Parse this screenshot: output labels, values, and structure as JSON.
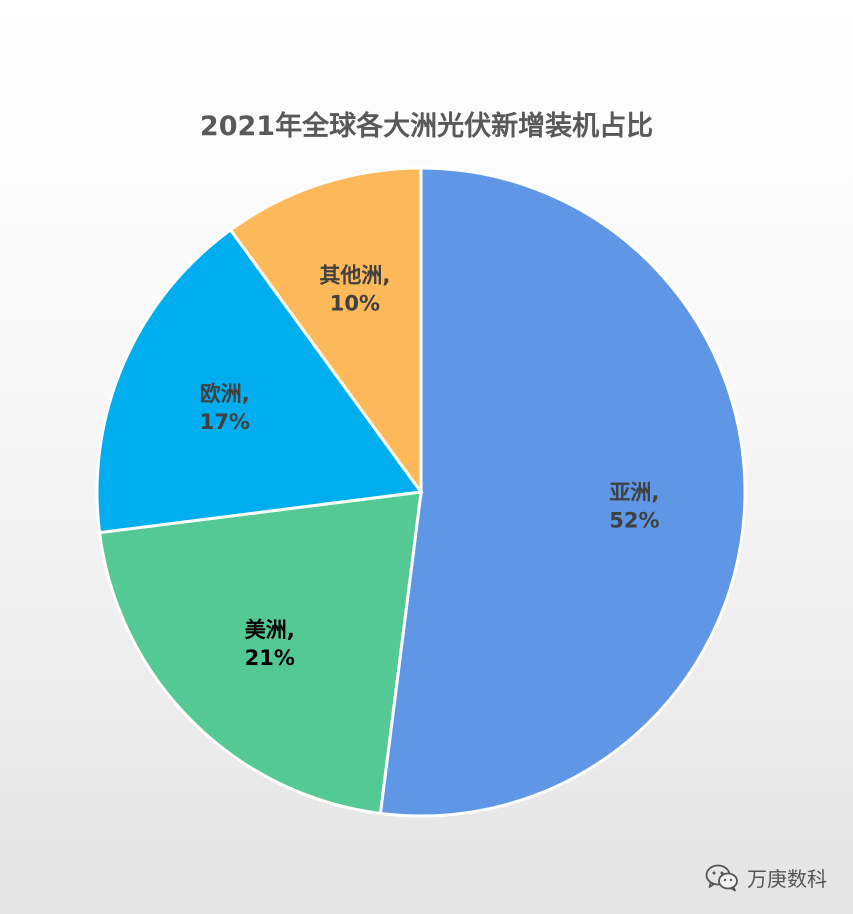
{
  "chart_data": {
    "type": "pie",
    "title": "2021年全球各大洲光伏新增装机占比",
    "slices": [
      {
        "name": "亚洲",
        "value": 52,
        "label_line1": "亚洲,",
        "label_line2": "52%",
        "color": "#6096E6",
        "label_color": "#404040"
      },
      {
        "name": "美洲",
        "value": 21,
        "label_line1": "美洲,",
        "label_line2": "21%",
        "color": "#55C993",
        "label_color": "#000000"
      },
      {
        "name": "欧洲",
        "value": 17,
        "label_line1": "欧洲,",
        "label_line2": "17%",
        "color": "#00AEEF",
        "label_color": "#404040"
      },
      {
        "name": "其他洲",
        "value": 10,
        "label_line1": "其他洲,",
        "label_line2": "10%",
        "color": "#FDB859",
        "label_color": "#404040"
      }
    ]
  },
  "watermark": {
    "text": "万庚数科",
    "icon": "wechat-icon"
  }
}
